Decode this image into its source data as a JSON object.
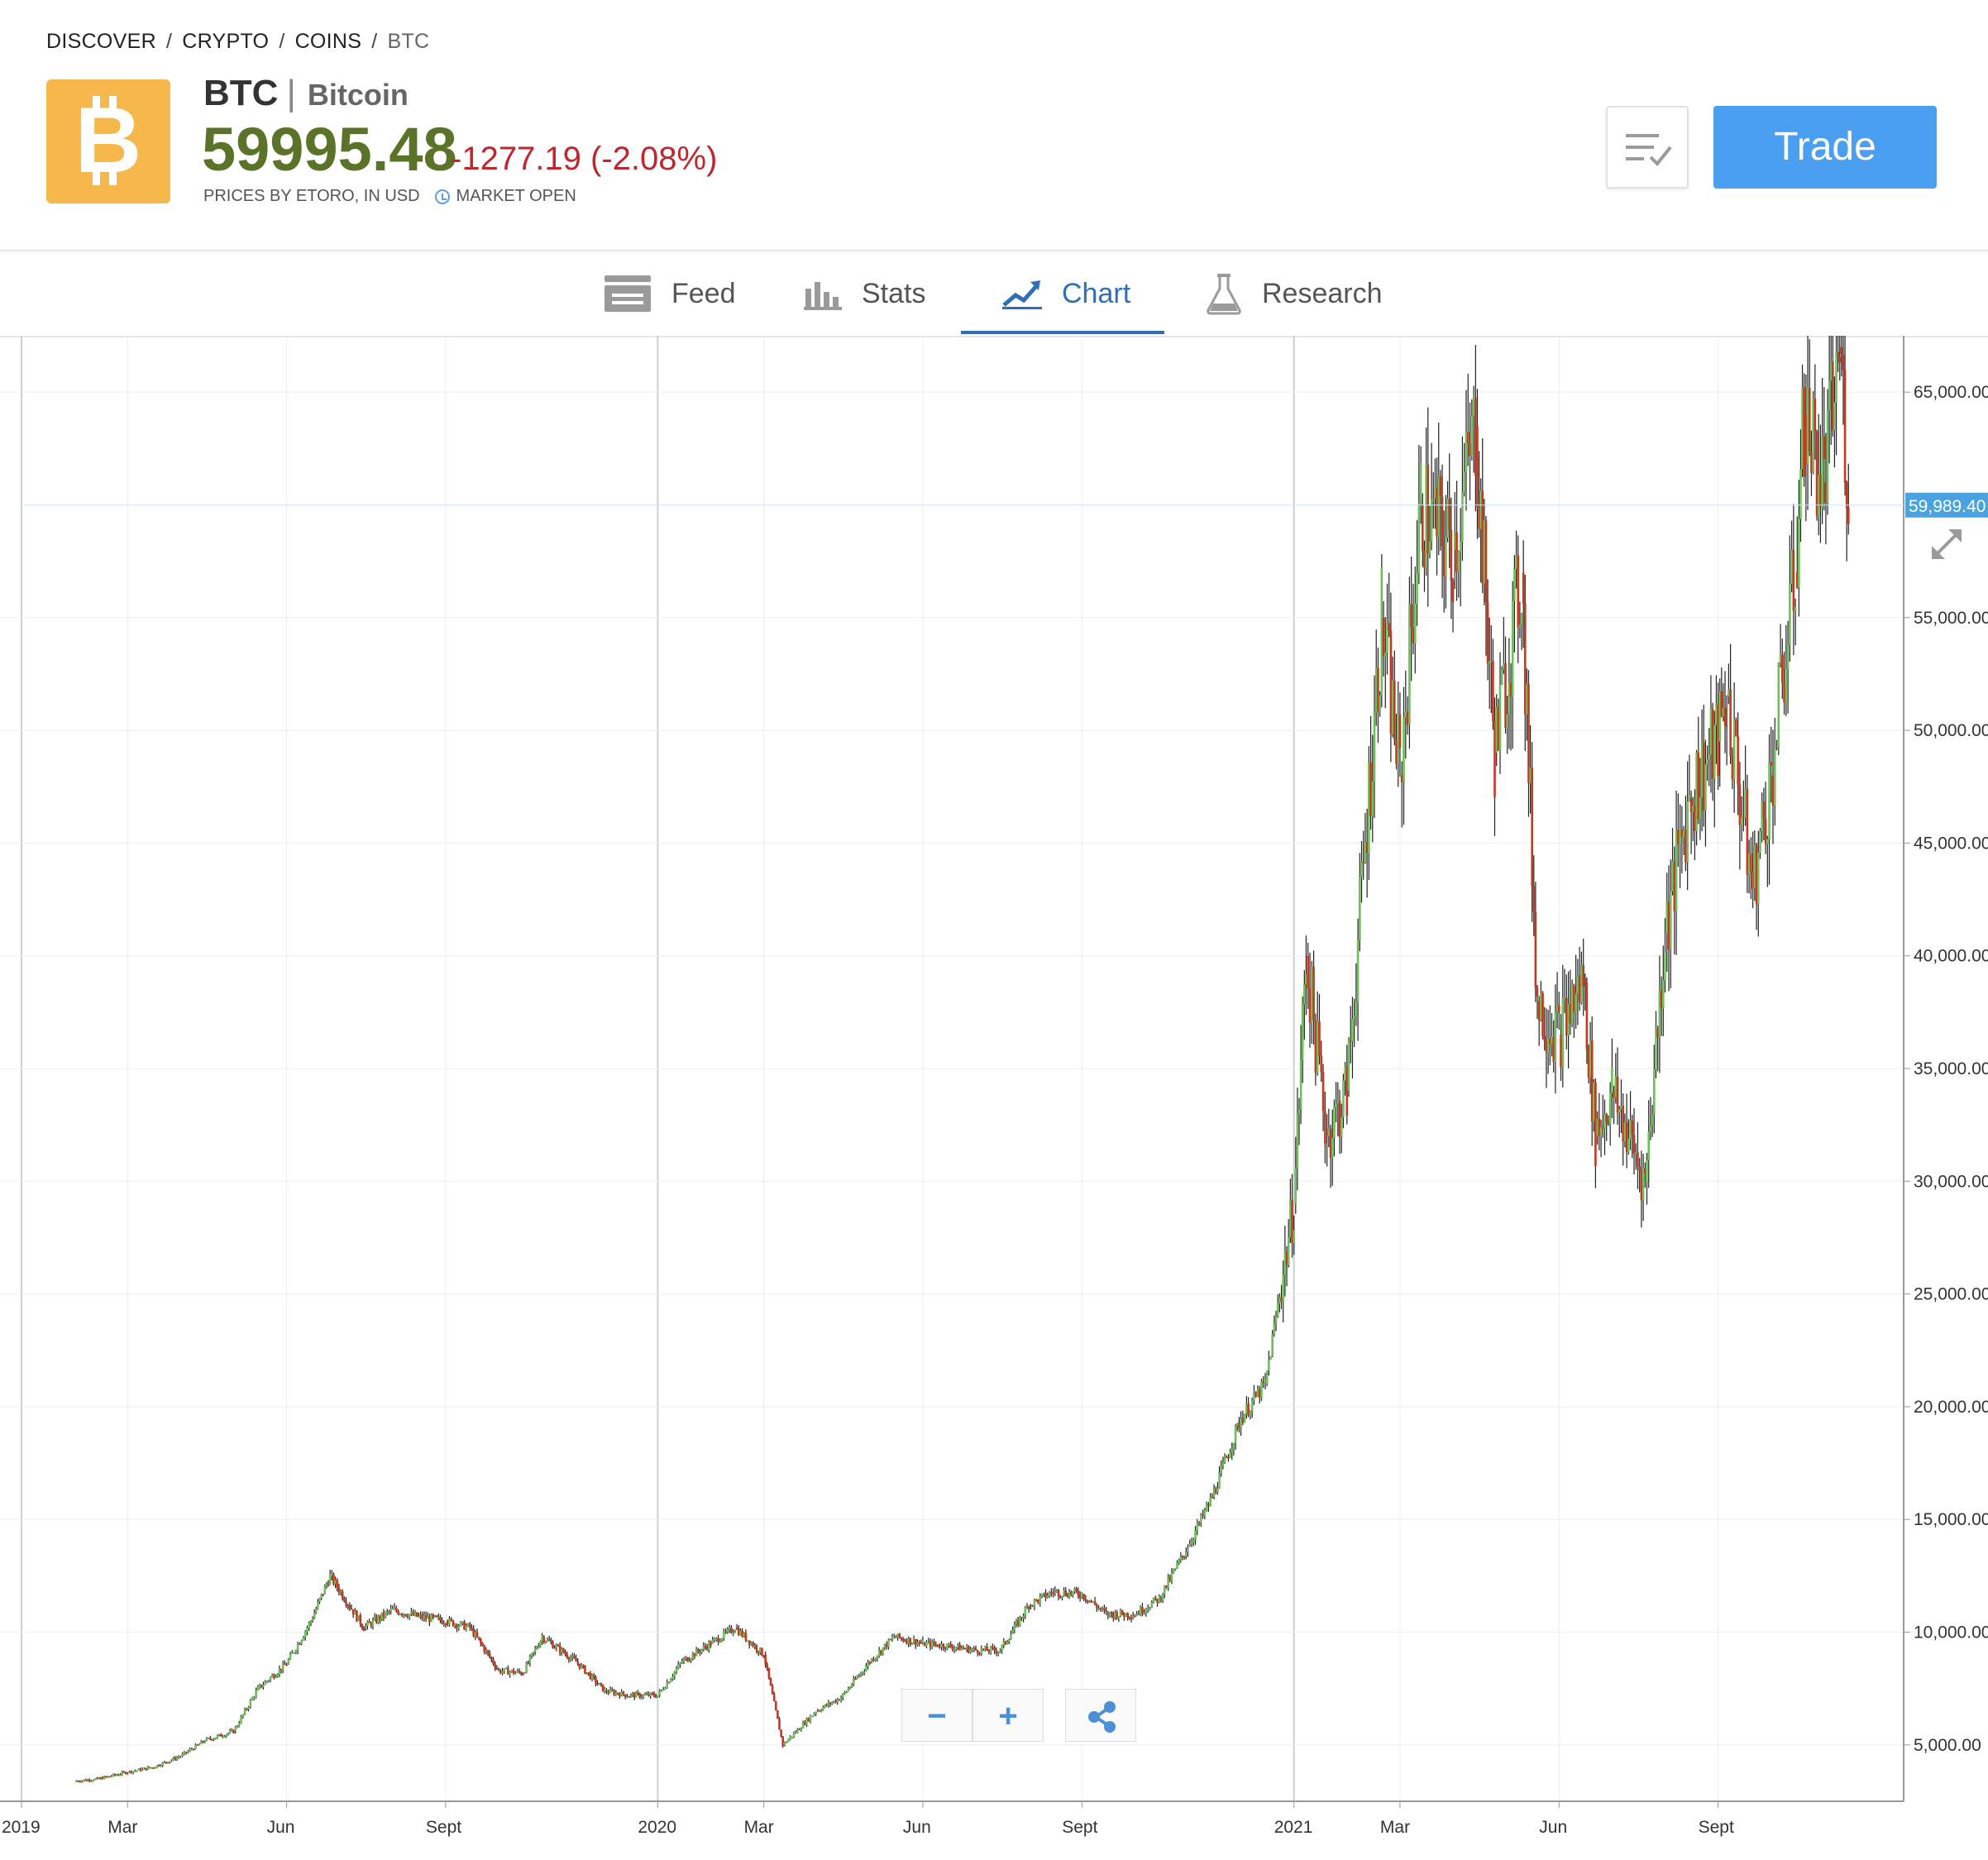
{
  "breadcrumb": [
    "DISCOVER",
    "CRYPTO",
    "COINS",
    "BTC"
  ],
  "instrument": {
    "symbol": "BTC",
    "name": "Bitcoin",
    "price": "59995.48",
    "change": "-1277.19 (-2.08%)",
    "prices_note": "PRICES BY ETORO, IN USD",
    "market_status": "MARKET OPEN",
    "logo_icon": "bitcoin-logo-icon",
    "brand_color": "#f7b84b"
  },
  "actions": {
    "watchlist_icon": "watchlist-icon",
    "trade_label": "Trade"
  },
  "tabs": [
    {
      "label": "Feed",
      "icon": "feed-icon"
    },
    {
      "label": "Stats",
      "icon": "stats-icon"
    },
    {
      "label": "Chart",
      "icon": "chart-icon",
      "active": true
    },
    {
      "label": "Research",
      "icon": "research-icon"
    }
  ],
  "chart_controls": {
    "zoom_out": "−",
    "zoom_in": "+",
    "share_icon": "share-icon"
  },
  "chart_data": {
    "type": "line",
    "current_price_label": "59,989.40",
    "x_ticks": [
      "2019",
      "Mar",
      "Jun",
      "Sept",
      "2020",
      "Mar",
      "Jun",
      "Sept",
      "2021",
      "Mar",
      "Jun",
      "Sept"
    ],
    "y_ticks": [
      "5,000.00",
      "10,000.00",
      "15,000.00",
      "20,000.00",
      "25,000.00",
      "30,000.00",
      "35,000.00",
      "40,000.00",
      "45,000.00",
      "50,000.00",
      "55,000.00",
      "65,000.00"
    ],
    "y_tick_values": [
      5000,
      10000,
      15000,
      20000,
      25000,
      30000,
      35000,
      40000,
      45000,
      50000,
      55000,
      65000
    ],
    "ylim": [
      2500,
      67500
    ],
    "colors": {
      "up": "#6cbf5a",
      "down": "#c8361e",
      "wick": "#222222",
      "price_label_bg": "#4aa3df"
    },
    "series": [
      {
        "x": [
          "2019-02-01",
          "2019-02-15",
          "2019-03-01",
          "2019-03-15",
          "2019-04-01",
          "2019-04-15",
          "2019-05-01",
          "2019-05-15",
          "2019-06-01",
          "2019-06-15",
          "2019-06-26",
          "2019-07-15",
          "2019-08-01",
          "2019-08-15",
          "2019-09-01",
          "2019-09-15",
          "2019-10-01",
          "2019-10-15",
          "2019-10-26",
          "2019-11-15",
          "2019-12-01",
          "2019-12-15",
          "2020-01-01",
          "2020-01-15",
          "2020-02-01",
          "2020-02-15",
          "2020-03-01",
          "2020-03-12",
          "2020-03-31",
          "2020-04-15",
          "2020-05-01",
          "2020-05-15",
          "2020-06-01",
          "2020-06-15",
          "2020-07-01",
          "2020-07-15",
          "2020-08-01",
          "2020-08-15",
          "2020-09-01",
          "2020-09-15",
          "2020-10-01",
          "2020-10-15",
          "2020-11-01",
          "2020-11-15",
          "2020-12-01",
          "2020-12-15",
          "2021-01-01",
          "2021-01-08",
          "2021-01-20",
          "2021-02-01",
          "2021-02-21",
          "2021-03-01",
          "2021-03-13",
          "2021-04-01",
          "2021-04-14",
          "2021-04-25",
          "2021-05-10",
          "2021-05-19",
          "2021-06-01",
          "2021-06-15",
          "2021-06-22",
          "2021-07-01",
          "2021-07-20",
          "2021-08-01",
          "2021-08-15",
          "2021-09-01",
          "2021-09-06",
          "2021-09-21",
          "2021-10-01",
          "2021-10-15",
          "2021-10-20",
          "2021-11-01",
          "2021-11-10",
          "2021-11-15"
        ],
        "values": [
          3400,
          3500,
          3800,
          4000,
          4500,
          5200,
          5600,
          7500,
          8600,
          10500,
          12500,
          10200,
          11000,
          10700,
          10500,
          10200,
          8300,
          8200,
          9800,
          8700,
          7400,
          7200,
          7200,
          8700,
          9500,
          10200,
          9000,
          5000,
          6500,
          7100,
          8700,
          9800,
          9500,
          9400,
          9200,
          9200,
          11200,
          11800,
          11700,
          10800,
          10800,
          11500,
          13800,
          16000,
          19500,
          21000,
          29000,
          40000,
          32000,
          34000,
          55000,
          48000,
          60000,
          58000,
          63500,
          49000,
          57000,
          38000,
          36500,
          39000,
          32000,
          34000,
          30000,
          41000,
          47000,
          49500,
          51500,
          43000,
          48000,
          57000,
          64000,
          61000,
          67000,
          61000
        ]
      }
    ]
  }
}
